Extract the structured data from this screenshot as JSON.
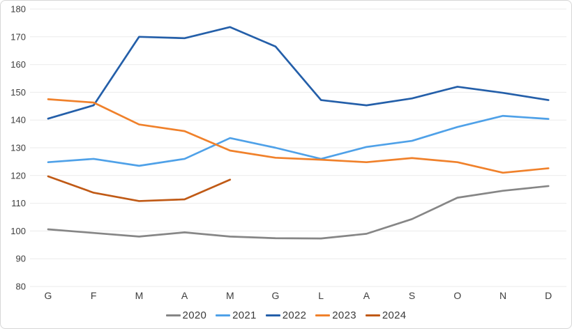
{
  "chart_data": {
    "type": "line",
    "title": "",
    "x_categories": [
      "G",
      "F",
      "M",
      "A",
      "M",
      "G",
      "L",
      "A",
      "S",
      "O",
      "N",
      "D"
    ],
    "y_axis": {
      "min": 80,
      "max": 180,
      "step": 10,
      "tick_labels": [
        "80",
        "90",
        "100",
        "110",
        "120",
        "130",
        "140",
        "150",
        "160",
        "170",
        "180"
      ]
    },
    "grid": true,
    "legend_position": "bottom",
    "series": [
      {
        "name": "2020",
        "color": "#868686",
        "values": [
          100.6,
          99.3,
          98.0,
          99.5,
          98.0,
          97.4,
          97.3,
          99.0,
          104.3,
          112.0,
          114.5,
          116.2
        ]
      },
      {
        "name": "2021",
        "color": "#4FA1E8",
        "values": [
          124.8,
          126.0,
          123.5,
          126.0,
          133.5,
          130.0,
          126.0,
          130.3,
          132.5,
          137.5,
          141.5,
          140.4
        ]
      },
      {
        "name": "2022",
        "color": "#245FA9",
        "values": [
          140.5,
          145.3,
          170.0,
          169.5,
          173.5,
          166.5,
          147.2,
          145.3,
          147.8,
          152.0,
          149.8,
          147.2
        ]
      },
      {
        "name": "2023",
        "color": "#F0812B",
        "values": [
          147.5,
          146.3,
          138.4,
          136.0,
          129.0,
          126.4,
          125.7,
          124.8,
          126.3,
          124.8,
          121.0,
          122.6
        ]
      },
      {
        "name": "2024",
        "color": "#C05A16",
        "values": [
          119.7,
          113.8,
          110.8,
          111.4,
          118.5,
          null,
          null,
          null,
          null,
          null,
          null,
          null
        ]
      }
    ]
  },
  "colors": {
    "background": "#ffffff",
    "border": "#d6d6d6",
    "gridline": "#ebebeb",
    "axis_text": "#3d3d3d",
    "legend_text": "#3a3a3a"
  }
}
